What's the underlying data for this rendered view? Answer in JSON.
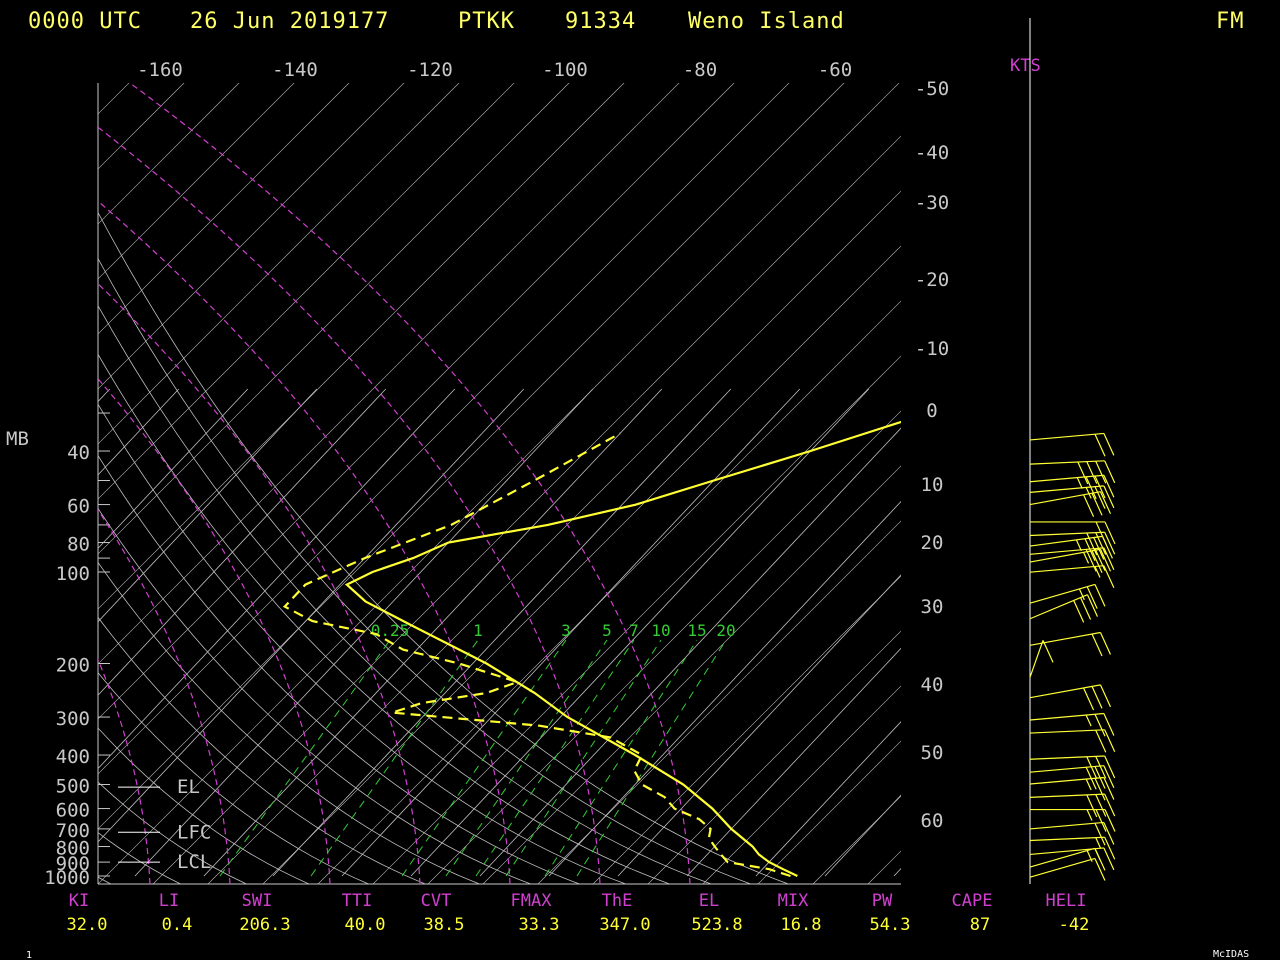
{
  "header": {
    "time": "0000 UTC",
    "date": "26 Jun 2019177",
    "station_id": "PTKK",
    "wmo_id": "91334",
    "station_name": "Weno Island",
    "unit_flag": "FM"
  },
  "footer": {
    "left_mark": "1",
    "brand": "McIDAS"
  },
  "wind_unit_label": "KTS",
  "colors": {
    "temperature": "#ffff33",
    "grid": "#bfbfbf",
    "dry_adiabat": "#d040d0",
    "mixing_ratio": "#33cc33",
    "index_label": "#d040d0",
    "index_value": "#ffff33"
  },
  "chart_data": {
    "type": "line",
    "title": "Skew-T log-P sounding",
    "yunit": "MB",
    "pressure_ticks": [
      "40",
      "60",
      "80",
      "100",
      "200",
      "300",
      "400",
      "500",
      "600",
      "700",
      "800",
      "900",
      "1000"
    ],
    "pressure_values": [
      40,
      60,
      80,
      100,
      200,
      300,
      400,
      500,
      600,
      700,
      800,
      900,
      1000
    ],
    "top_temp_ticks": [
      -160,
      -140,
      -120,
      -100,
      -80,
      -60
    ],
    "right_temp_ticks": [
      -50,
      -40,
      -30,
      -20,
      -10,
      0,
      10,
      20,
      30,
      40,
      50,
      60
    ],
    "mixing_ratio_labels": [
      "0.25",
      "1",
      "3",
      "5",
      "7",
      "10",
      "15",
      "20"
    ],
    "mixing_ratio_values": [
      0.25,
      1,
      3,
      5,
      7,
      10,
      15,
      20
    ],
    "level_markers": [
      "EL",
      "LFC",
      "LCL"
    ],
    "level_marker_pressures": [
      510,
      718,
      900
    ],
    "series": [
      {
        "name": "Temperature",
        "points": [
          [
            1000,
            26
          ],
          [
            950,
            23
          ],
          [
            900,
            20
          ],
          [
            850,
            17.5
          ],
          [
            800,
            15.5
          ],
          [
            700,
            10
          ],
          [
            600,
            4.5
          ],
          [
            500,
            -3
          ],
          [
            400,
            -14
          ],
          [
            300,
            -29
          ],
          [
            250,
            -37
          ],
          [
            200,
            -48
          ],
          [
            150,
            -64
          ],
          [
            125,
            -74
          ],
          [
            110,
            -79
          ],
          [
            100,
            -77
          ],
          [
            90,
            -73
          ],
          [
            80,
            -70
          ],
          [
            70,
            -58
          ],
          [
            60,
            -48
          ],
          [
            50,
            -40
          ],
          [
            40,
            -30
          ],
          [
            30,
            -18
          ]
        ]
      },
      {
        "name": "Dewpoint",
        "points": [
          [
            1000,
            25
          ],
          [
            950,
            21
          ],
          [
            900,
            14
          ],
          [
            850,
            12
          ],
          [
            800,
            10
          ],
          [
            750,
            8
          ],
          [
            700,
            7
          ],
          [
            650,
            4
          ],
          [
            600,
            -1
          ],
          [
            550,
            -4
          ],
          [
            500,
            -9
          ],
          [
            450,
            -12
          ],
          [
            400,
            -13
          ],
          [
            350,
            -20
          ],
          [
            320,
            -32
          ],
          [
            290,
            -55
          ],
          [
            270,
            -52
          ],
          [
            250,
            -44
          ],
          [
            230,
            -41
          ],
          [
            200,
            -52
          ],
          [
            180,
            -62
          ],
          [
            160,
            -68
          ],
          [
            145,
            -79
          ],
          [
            130,
            -85
          ],
          [
            110,
            -85
          ],
          [
            90,
            -80
          ],
          [
            70,
            -72
          ],
          [
            50,
            -66
          ],
          [
            35,
            -60
          ]
        ]
      }
    ],
    "wind_barbs": [
      {
        "p": 35,
        "dir": 80,
        "spd": 20
      },
      {
        "p": 42,
        "dir": 95,
        "spd": 40
      },
      {
        "p": 48,
        "dir": 80,
        "spd": 35
      },
      {
        "p": 52,
        "dir": 100,
        "spd": 25
      },
      {
        "p": 57,
        "dir": 110,
        "spd": 30
      },
      {
        "p": 65,
        "dir": 90,
        "spd": 20
      },
      {
        "p": 72,
        "dir": 85,
        "spd": 30
      },
      {
        "p": 78,
        "dir": 75,
        "spd": 35
      },
      {
        "p": 83,
        "dir": 80,
        "spd": 30
      },
      {
        "p": 88,
        "dir": 110,
        "spd": 25
      },
      {
        "p": 95,
        "dir": 100,
        "spd": 15
      },
      {
        "p": 120,
        "dir": 60,
        "spd": 25
      },
      {
        "p": 135,
        "dir": 50,
        "spd": 30
      },
      {
        "p": 165,
        "dir": 70,
        "spd": 20
      },
      {
        "p": 210,
        "dir": 190,
        "spd": 10
      },
      {
        "p": 245,
        "dir": 110,
        "spd": 30
      },
      {
        "p": 290,
        "dir": 100,
        "spd": 25
      },
      {
        "p": 320,
        "dir": 95,
        "spd": 20
      },
      {
        "p": 390,
        "dir": 95,
        "spd": 30
      },
      {
        "p": 430,
        "dir": 100,
        "spd": 30
      },
      {
        "p": 470,
        "dir": 80,
        "spd": 25
      },
      {
        "p": 520,
        "dir": 85,
        "spd": 30
      },
      {
        "p": 570,
        "dir": 90,
        "spd": 25
      },
      {
        "p": 660,
        "dir": 100,
        "spd": 20
      },
      {
        "p": 720,
        "dir": 95,
        "spd": 15
      },
      {
        "p": 800,
        "dir": 80,
        "spd": 15
      },
      {
        "p": 880,
        "dir": 60,
        "spd": 15
      },
      {
        "p": 950,
        "dir": 60,
        "spd": 10
      }
    ],
    "indices": [
      {
        "label": "KI",
        "value": "32.0"
      },
      {
        "label": "LI",
        "value": "0.4"
      },
      {
        "label": "SWI",
        "value": "206.3"
      },
      {
        "label": "TTI",
        "value": "40.0"
      },
      {
        "label": "CVT",
        "value": "38.5"
      },
      {
        "label": "FMAX",
        "value": "33.3"
      },
      {
        "label": "ThE",
        "value": "347.0"
      },
      {
        "label": "EL",
        "value": "523.8"
      },
      {
        "label": "MIX",
        "value": "16.8"
      },
      {
        "label": "PW",
        "value": "54.3"
      },
      {
        "label": "CAPE",
        "value": "87"
      },
      {
        "label": "HELI",
        "value": "-42"
      }
    ]
  }
}
